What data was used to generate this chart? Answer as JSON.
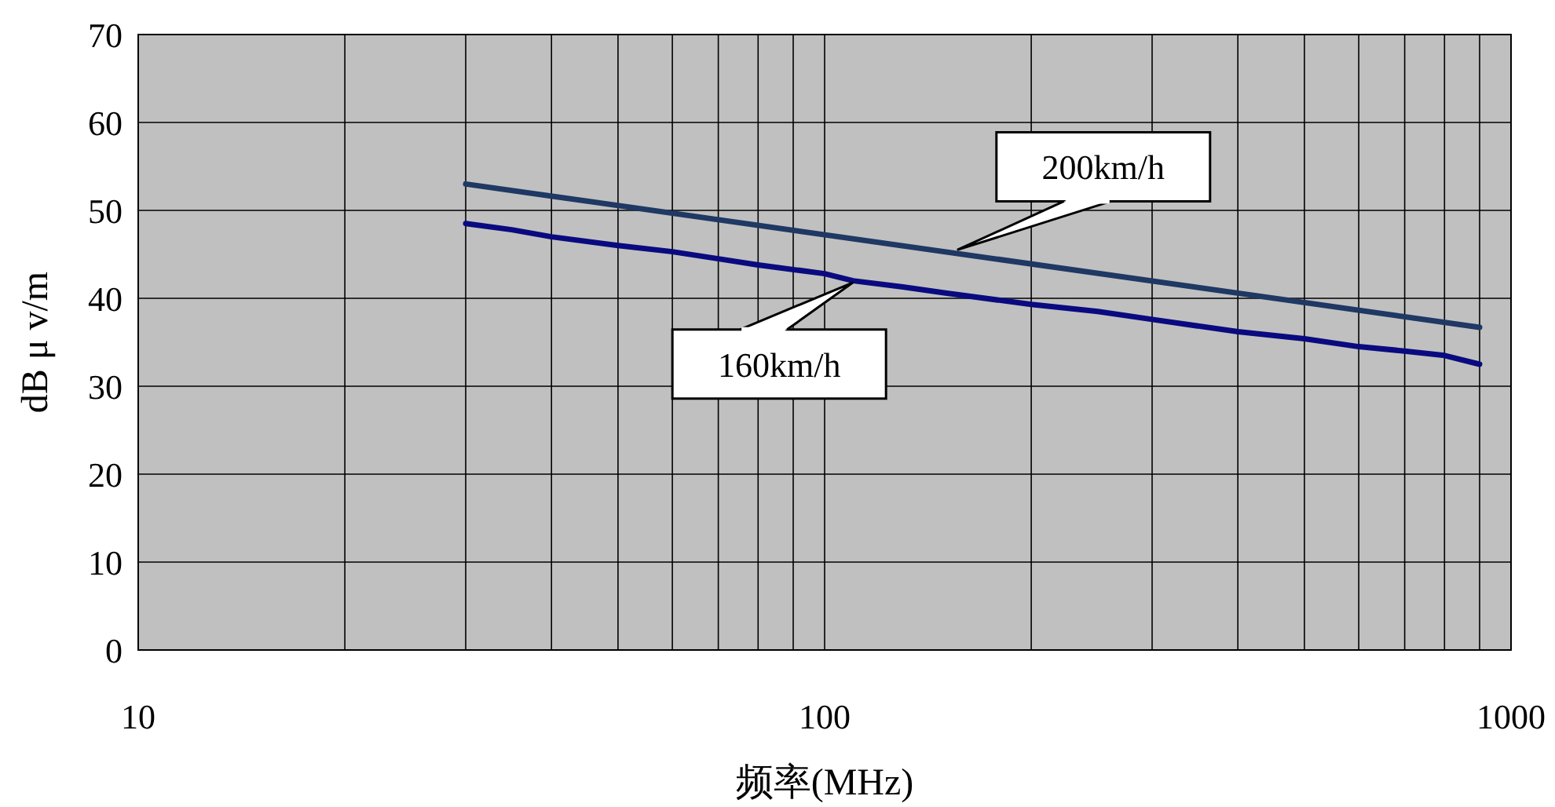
{
  "chart_data": {
    "type": "line",
    "xlabel": "频率(MHz)",
    "ylabel": "dB μ v/m",
    "log": "x",
    "grid": true,
    "marker": "none",
    "line_style": "solid",
    "xlim": [
      10,
      1000
    ],
    "ylim": [
      0,
      70
    ],
    "xticks": [
      10,
      {
        "value": 20,
        "label": null
      },
      {
        "value": 30,
        "label": null
      },
      {
        "value": 40,
        "label": null
      },
      {
        "value": 50,
        "label": null
      },
      {
        "value": 60,
        "label": null
      },
      {
        "value": 70,
        "label": null
      },
      {
        "value": 80,
        "label": null
      },
      {
        "value": 90,
        "label": null
      },
      100,
      {
        "value": 200,
        "label": null
      },
      {
        "value": 300,
        "label": null
      },
      {
        "value": 400,
        "label": null
      },
      {
        "value": 500,
        "label": null
      },
      {
        "value": 600,
        "label": null
      },
      {
        "value": 700,
        "label": null
      },
      {
        "value": 800,
        "label": null
      },
      {
        "value": 900,
        "label": null
      },
      1000
    ],
    "yticks": [
      0,
      10,
      20,
      30,
      40,
      50,
      60,
      70
    ],
    "series": [
      {
        "color": "#1f3864",
        "x": [
          30,
          900
        ],
        "values": [
          53,
          36.7
        ]
      },
      {
        "color": "#0a0a80",
        "x": [
          30,
          35,
          40,
          50,
          60,
          70,
          80,
          100,
          110,
          130,
          150,
          200,
          250,
          300,
          400,
          500,
          600,
          700,
          800,
          900
        ],
        "values": [
          48.5,
          47.8,
          47,
          46,
          45.3,
          44.5,
          43.8,
          42.8,
          42,
          41.3,
          40.6,
          39.3,
          38.5,
          37.6,
          36.2,
          35.4,
          34.5,
          34,
          33.5,
          32.5
        ]
      }
    ],
    "annotations": [
      {
        "text": "200km/h",
        "x": 156,
        "y": 45.5
      },
      {
        "text": "160km/h",
        "x": 110,
        "y": 41.8
      }
    ]
  }
}
